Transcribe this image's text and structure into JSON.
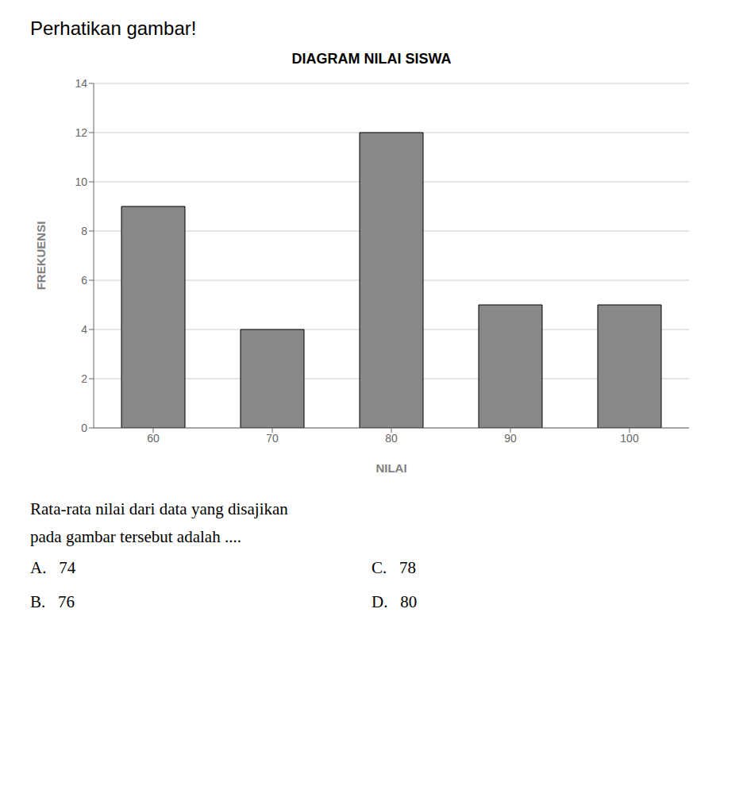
{
  "chart_data": {
    "type": "bar",
    "title": "DIAGRAM NILAI SISWA",
    "xlabel": "NILAI",
    "ylabel": "FREKUENSI",
    "categories": [
      60,
      70,
      80,
      90,
      100
    ],
    "values": [
      9,
      4,
      12,
      5,
      5
    ],
    "color": "#888888",
    "ylim": [
      0,
      14
    ],
    "yticks": [
      0,
      2,
      4,
      6,
      8,
      10,
      12,
      14
    ],
    "grid": true,
    "annotations": [
      "Perhatikan gambar!",
      "Rata-rata nilai dari data yang disajikan",
      "pada gambar tersebut adalah ....",
      "A.   74",
      "B.   76",
      "C.   78",
      "D.   80"
    ]
  }
}
